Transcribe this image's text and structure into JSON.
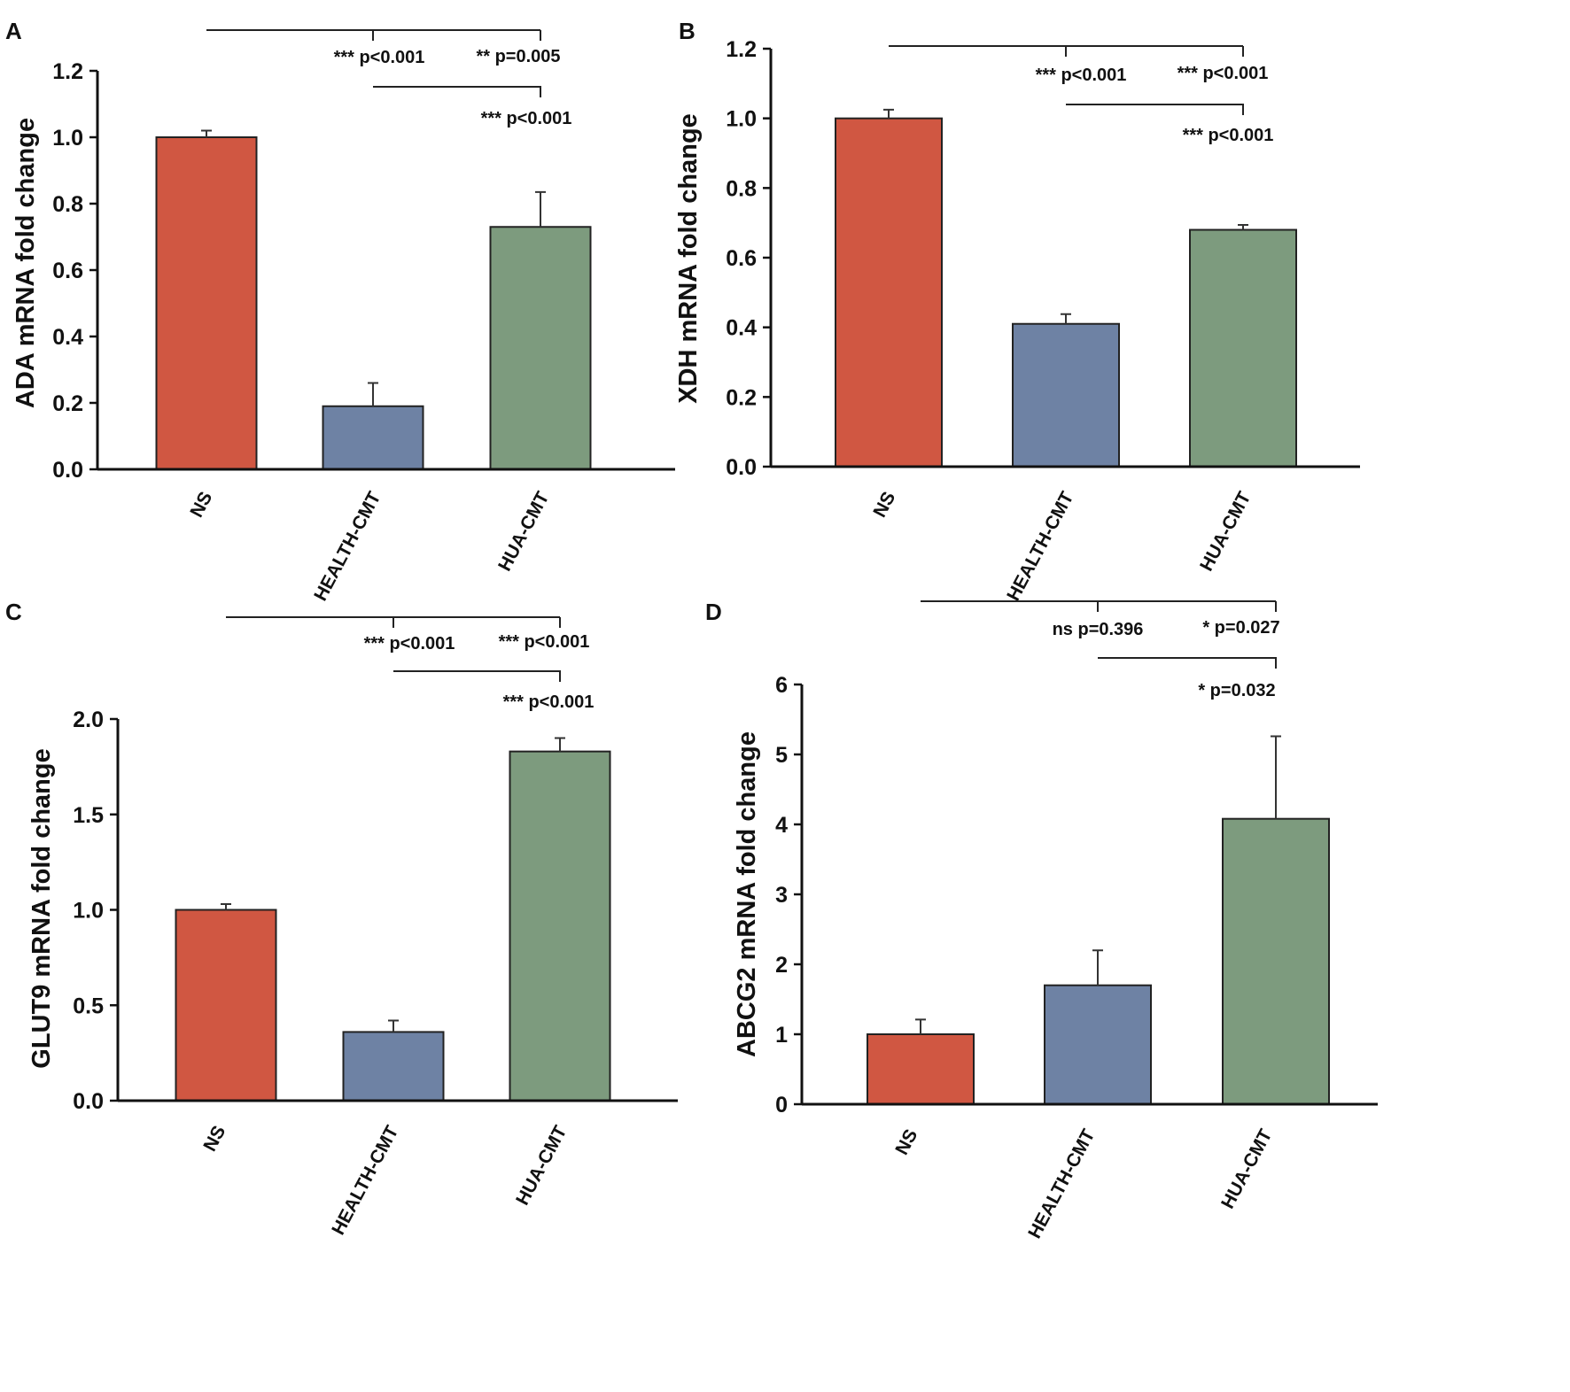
{
  "figure": {
    "colors": {
      "ns": "#d05742",
      "health": "#6e82a4",
      "hua": "#7d9b7e"
    },
    "chart_data": [
      {
        "panel": "A",
        "type": "bar",
        "ylabel": "ADA mRNA fold change",
        "categories": [
          "NS",
          "HEALTH-CMT",
          "HUA-CMT"
        ],
        "values": [
          1.0,
          0.19,
          0.73
        ],
        "errors": [
          0.02,
          0.07,
          0.105
        ],
        "ylim": [
          0,
          1.2
        ],
        "yticks": [
          "0.0",
          "0.2",
          "0.4",
          "0.6",
          "0.8",
          "1.0",
          "1.2"
        ],
        "annotations": {
          "ns_vs_health": "*** p<0.001",
          "ns_vs_hua": "** p=0.005",
          "health_vs_hua": "*** p<0.001"
        }
      },
      {
        "panel": "B",
        "type": "bar",
        "ylabel": "XDH mRNA fold change",
        "categories": [
          "NS",
          "HEALTH-CMT",
          "HUA-CMT"
        ],
        "values": [
          1.0,
          0.41,
          0.68
        ],
        "errors": [
          0.025,
          0.028,
          0.014
        ],
        "ylim": [
          0,
          1.2
        ],
        "yticks": [
          "0.0",
          "0.2",
          "0.4",
          "0.6",
          "0.8",
          "1.0",
          "1.2"
        ],
        "annotations": {
          "ns_vs_health": "*** p<0.001",
          "ns_vs_hua": "*** p<0.001",
          "health_vs_hua": "*** p<0.001"
        }
      },
      {
        "panel": "C",
        "type": "bar",
        "ylabel": "GLUT9 mRNA fold change",
        "categories": [
          "NS",
          "HEALTH-CMT",
          "HUA-CMT"
        ],
        "values": [
          1.0,
          0.36,
          1.83
        ],
        "errors": [
          0.03,
          0.06,
          0.07
        ],
        "ylim": [
          0,
          2.0
        ],
        "yticks": [
          "0.0",
          "0.5",
          "1.0",
          "1.5",
          "2.0"
        ],
        "annotations": {
          "ns_vs_health": "*** p<0.001",
          "ns_vs_hua": "*** p<0.001",
          "health_vs_hua": "*** p<0.001"
        }
      },
      {
        "panel": "D",
        "type": "bar",
        "ylabel": "ABCG2 mRNA fold change",
        "categories": [
          "NS",
          "HEALTH-CMT",
          "HUA-CMT"
        ],
        "values": [
          1.0,
          1.7,
          4.08
        ],
        "errors": [
          0.21,
          0.5,
          1.18
        ],
        "ylim": [
          0,
          6
        ],
        "yticks": [
          "0",
          "1",
          "2",
          "3",
          "4",
          "5",
          "6"
        ],
        "annotations": {
          "ns_vs_health": "ns p=0.396",
          "ns_vs_hua": "* p=0.027",
          "health_vs_hua": "* p=0.032"
        }
      }
    ]
  }
}
